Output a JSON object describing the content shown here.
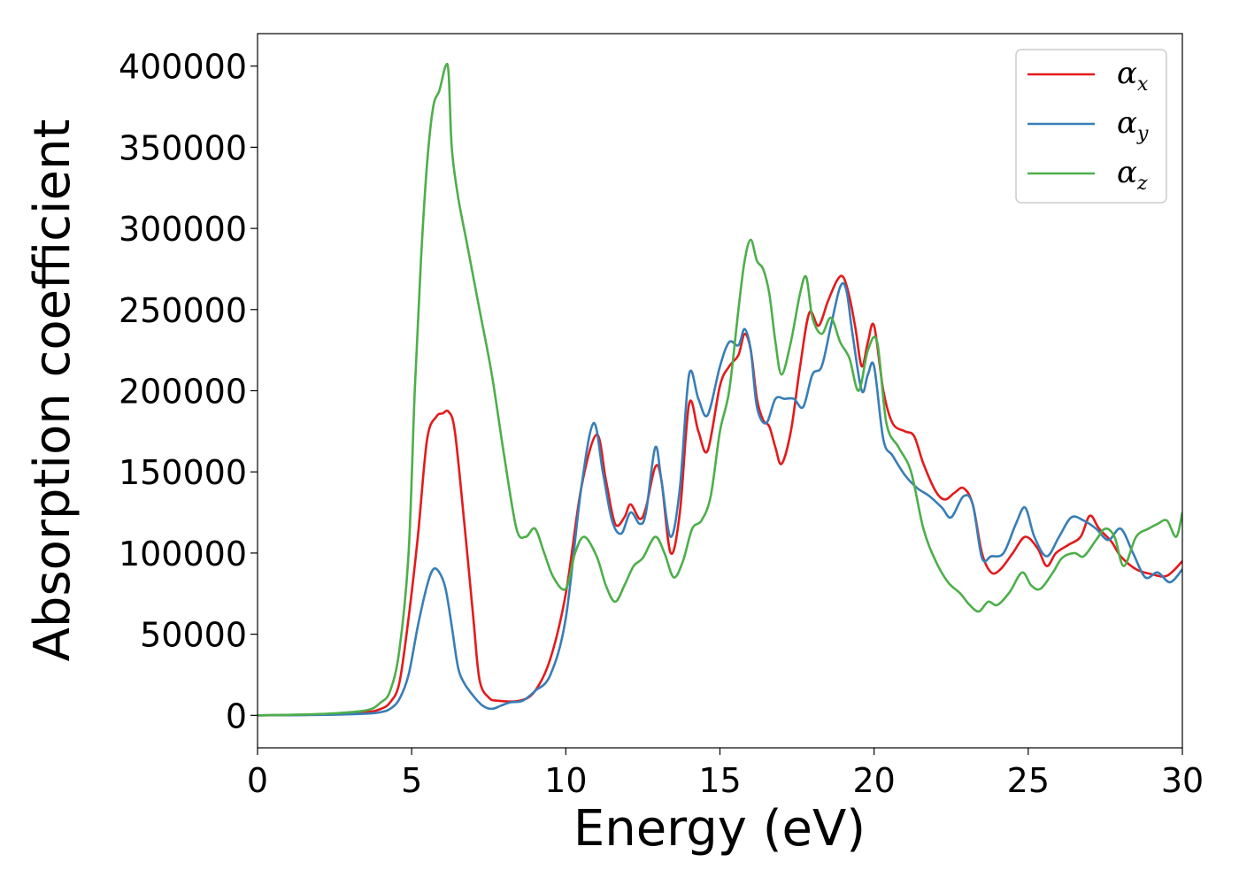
{
  "chart_data": {
    "type": "line",
    "xlabel": "Energy (eV)",
    "ylabel": "Absorption coefficient",
    "xlim": [
      0,
      30
    ],
    "ylim": [
      -20000,
      420000
    ],
    "xticks": [
      0,
      5,
      10,
      15,
      20,
      25,
      30
    ],
    "yticks": [
      0,
      50000,
      100000,
      150000,
      200000,
      250000,
      300000,
      350000,
      400000
    ],
    "xtick_labels": [
      "0",
      "5",
      "10",
      "15",
      "20",
      "25",
      "30"
    ],
    "ytick_labels": [
      "0",
      "50000",
      "100000",
      "150000",
      "200000",
      "250000",
      "300000",
      "350000",
      "400000"
    ],
    "grid": false,
    "legend_position": "top-right",
    "series": [
      {
        "name": "αx",
        "symbol": "α",
        "subscript": "x",
        "color": "#e41a1c",
        "x": [
          0,
          2,
          3.5,
          4,
          4.3,
          4.6,
          4.9,
          5.2,
          5.5,
          5.8,
          6.0,
          6.2,
          6.4,
          6.7,
          7.0,
          7.2,
          7.5,
          7.8,
          8.5,
          9.0,
          9.5,
          10.0,
          10.5,
          11.0,
          11.3,
          11.6,
          11.9,
          12.1,
          12.4,
          12.6,
          12.9,
          13.1,
          13.4,
          13.7,
          14.0,
          14.3,
          14.6,
          15.0,
          15.3,
          15.6,
          15.8,
          16.0,
          16.2,
          16.4,
          16.6,
          16.8,
          17.0,
          17.3,
          17.6,
          17.9,
          18.2,
          18.5,
          18.8,
          19.0,
          19.2,
          19.4,
          19.6,
          19.8,
          20.0,
          20.3,
          20.6,
          21.0,
          21.3,
          21.6,
          22.0,
          22.3,
          22.6,
          22.9,
          23.2,
          23.5,
          23.8,
          24.1,
          24.5,
          24.9,
          25.3,
          25.6,
          25.9,
          26.3,
          26.7,
          27.0,
          27.3,
          27.7,
          28.0,
          28.5,
          29.0,
          29.5,
          30.0
        ],
        "y": [
          0,
          500,
          2000,
          4000,
          8000,
          20000,
          60000,
          110000,
          170000,
          184000,
          186000,
          187000,
          175000,
          120000,
          60000,
          22000,
          11000,
          9000,
          9000,
          15000,
          35000,
          75000,
          140000,
          173000,
          145000,
          118000,
          122000,
          130000,
          121000,
          128000,
          153000,
          145000,
          100000,
          125000,
          192000,
          175000,
          163000,
          203000,
          215000,
          222000,
          235000,
          225000,
          195000,
          182000,
          178000,
          165000,
          155000,
          175000,
          215000,
          248000,
          240000,
          255000,
          268000,
          270000,
          258000,
          238000,
          215000,
          230000,
          240000,
          200000,
          180000,
          175000,
          172000,
          155000,
          138000,
          133000,
          137000,
          140000,
          130000,
          100000,
          88000,
          90000,
          100000,
          110000,
          103000,
          92000,
          100000,
          105000,
          110000,
          123000,
          115000,
          107000,
          98000,
          90000,
          87000,
          86000,
          95000
        ]
      },
      {
        "name": "αy",
        "symbol": "α",
        "subscript": "y",
        "color": "#377eb8",
        "x": [
          0,
          2,
          3.5,
          4,
          4.3,
          4.6,
          4.9,
          5.2,
          5.5,
          5.7,
          5.9,
          6.1,
          6.3,
          6.5,
          6.7,
          7.0,
          7.3,
          7.6,
          7.9,
          8.2,
          8.6,
          9.0,
          9.5,
          10.0,
          10.5,
          10.9,
          11.2,
          11.5,
          11.8,
          12.1,
          12.4,
          12.6,
          12.9,
          13.1,
          13.4,
          13.7,
          14.0,
          14.3,
          14.6,
          15.0,
          15.3,
          15.6,
          15.8,
          16.0,
          16.2,
          16.5,
          16.8,
          17.1,
          17.4,
          17.7,
          18.0,
          18.3,
          18.6,
          18.9,
          19.1,
          19.3,
          19.6,
          19.8,
          20.0,
          20.3,
          20.6,
          21.0,
          21.4,
          21.8,
          22.2,
          22.5,
          22.9,
          23.2,
          23.5,
          23.8,
          24.2,
          24.6,
          24.9,
          25.2,
          25.6,
          26.0,
          26.4,
          26.8,
          27.2,
          27.6,
          28.0,
          28.4,
          28.8,
          29.2,
          29.6,
          30.0
        ],
        "y": [
          0,
          300,
          1000,
          2000,
          4000,
          10000,
          25000,
          55000,
          80000,
          90000,
          88000,
          78000,
          55000,
          30000,
          20000,
          12000,
          6000,
          4000,
          6000,
          8000,
          9000,
          15000,
          25000,
          60000,
          140000,
          180000,
          150000,
          120000,
          112000,
          125000,
          118000,
          125000,
          165000,
          145000,
          110000,
          140000,
          210000,
          195000,
          185000,
          215000,
          230000,
          228000,
          238000,
          225000,
          190000,
          180000,
          195000,
          195000,
          195000,
          190000,
          210000,
          215000,
          240000,
          264000,
          262000,
          235000,
          200000,
          210000,
          215000,
          170000,
          160000,
          148000,
          140000,
          135000,
          128000,
          122000,
          135000,
          130000,
          97000,
          98000,
          100000,
          118000,
          128000,
          110000,
          98000,
          110000,
          122000,
          120000,
          115000,
          108000,
          115000,
          100000,
          85000,
          88000,
          82000,
          90000
        ]
      },
      {
        "name": "αz",
        "symbol": "α",
        "subscript": "z",
        "color": "#4daf4a",
        "x": [
          0,
          2,
          3.5,
          4,
          4.3,
          4.6,
          4.9,
          5.1,
          5.3,
          5.5,
          5.7,
          5.9,
          6.1,
          6.2,
          6.3,
          6.5,
          6.8,
          7.2,
          7.6,
          8.0,
          8.4,
          8.7,
          9.0,
          9.3,
          9.6,
          10.0,
          10.3,
          10.6,
          11.0,
          11.3,
          11.6,
          11.9,
          12.2,
          12.5,
          12.9,
          13.2,
          13.5,
          13.8,
          14.1,
          14.4,
          14.7,
          15.0,
          15.3,
          15.6,
          15.8,
          16.0,
          16.2,
          16.4,
          16.6,
          16.8,
          17.0,
          17.3,
          17.6,
          17.8,
          18.0,
          18.3,
          18.6,
          18.9,
          19.2,
          19.5,
          19.8,
          20.1,
          20.4,
          20.8,
          21.2,
          21.6,
          22.0,
          22.4,
          22.8,
          23.1,
          23.4,
          23.7,
          24.0,
          24.4,
          24.8,
          25.1,
          25.4,
          25.8,
          26.1,
          26.5,
          26.8,
          27.2,
          27.5,
          27.8,
          28.1,
          28.5,
          28.9,
          29.2,
          29.5,
          29.8,
          30.0
        ],
        "y": [
          0,
          800,
          3000,
          8000,
          15000,
          40000,
          100000,
          200000,
          280000,
          340000,
          375000,
          385000,
          400000,
          395000,
          350000,
          320000,
          290000,
          250000,
          210000,
          160000,
          115000,
          110000,
          115000,
          100000,
          85000,
          78000,
          100000,
          110000,
          98000,
          80000,
          70000,
          80000,
          92000,
          97000,
          110000,
          100000,
          85000,
          95000,
          115000,
          120000,
          135000,
          175000,
          200000,
          250000,
          280000,
          293000,
          280000,
          275000,
          260000,
          230000,
          210000,
          230000,
          260000,
          270000,
          245000,
          235000,
          245000,
          230000,
          220000,
          200000,
          225000,
          230000,
          180000,
          165000,
          150000,
          115000,
          95000,
          82000,
          75000,
          68000,
          64000,
          70000,
          68000,
          76000,
          88000,
          80000,
          78000,
          88000,
          97000,
          100000,
          98000,
          108000,
          115000,
          110000,
          92000,
          110000,
          115000,
          118000,
          120000,
          110000,
          125000
        ]
      }
    ]
  }
}
